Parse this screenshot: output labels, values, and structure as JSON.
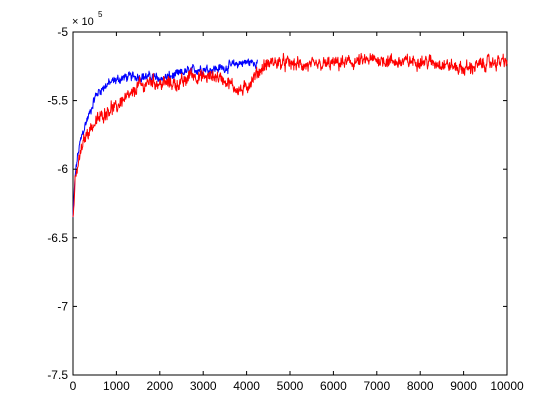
{
  "chart_data": {
    "type": "line",
    "title": "",
    "xlabel": "",
    "ylabel": "",
    "xlim": [
      0,
      10000
    ],
    "ylim": [
      -750000,
      -500000
    ],
    "y_display_scale": 100000,
    "y_exponent_label": {
      "base": "× 10",
      "power": "5"
    },
    "x_ticks": [
      0,
      1000,
      2000,
      3000,
      4000,
      5000,
      6000,
      7000,
      8000,
      9000,
      10000
    ],
    "x_tick_labels": [
      "0",
      "1000",
      "2000",
      "3000",
      "4000",
      "5000",
      "6000",
      "7000",
      "8000",
      "9000",
      "10000"
    ],
    "y_ticks": [
      -750000,
      -700000,
      -650000,
      -600000,
      -550000,
      -500000
    ],
    "y_tick_labels": [
      "-7.5",
      "-7",
      "-6.5",
      "-6",
      "-5.5",
      "-5"
    ],
    "grid": false,
    "legend": "none",
    "series": [
      {
        "color": "#0000ff",
        "noise": 3500,
        "x": [
          0,
          50,
          100,
          150,
          200,
          300,
          400,
          500,
          600,
          800,
          1000,
          1200,
          1500,
          1800,
          2000,
          2300,
          2600,
          2900,
          3200,
          3500,
          3800,
          4000,
          4250
        ],
        "y": [
          -635000,
          -605000,
          -592000,
          -583000,
          -576000,
          -566000,
          -558000,
          -548000,
          -543000,
          -538000,
          -535000,
          -533000,
          -532000,
          -533000,
          -534000,
          -532000,
          -529000,
          -527000,
          -527000,
          -526000,
          -523000,
          -522000,
          -522000
        ]
      },
      {
        "color": "#ff0000",
        "noise": 5000,
        "x": [
          0,
          50,
          100,
          150,
          200,
          300,
          400,
          500,
          600,
          700,
          800,
          900,
          1000,
          1100,
          1200,
          1400,
          1500,
          1600,
          1800,
          2000,
          2200,
          2400,
          2600,
          2700,
          2900,
          3100,
          3300,
          3500,
          3700,
          3900,
          4000,
          4200,
          4400,
          4600,
          5000,
          5500,
          6000,
          6500,
          7000,
          7500,
          8000,
          8500,
          9000,
          9500,
          10000
        ],
        "y": [
          -635000,
          -610000,
          -600000,
          -592000,
          -585000,
          -575000,
          -570000,
          -567000,
          -563000,
          -560000,
          -557000,
          -555000,
          -556000,
          -550000,
          -549000,
          -545000,
          -538000,
          -540000,
          -535000,
          -538000,
          -537000,
          -538000,
          -536000,
          -530000,
          -533000,
          -533000,
          -532000,
          -535000,
          -540000,
          -543000,
          -540000,
          -532000,
          -525000,
          -522000,
          -523000,
          -525000,
          -523000,
          -522000,
          -520000,
          -522000,
          -521000,
          -523000,
          -527000,
          -523000,
          -521000
        ]
      }
    ]
  }
}
